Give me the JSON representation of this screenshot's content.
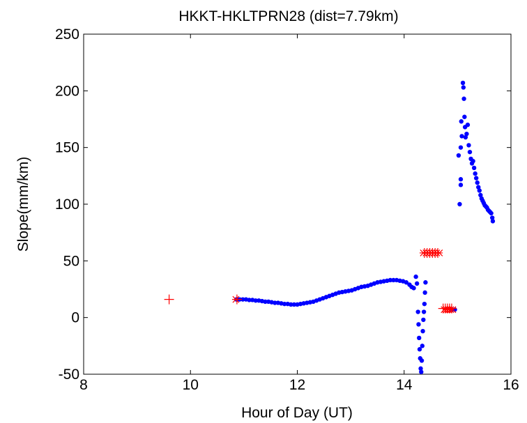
{
  "chart_data": {
    "type": "scatter",
    "title": "HKKT-HKLTPRN28 (dist=7.79km)",
    "xlabel": "Hour of Day (UT)",
    "ylabel": "Slope(mm/km)",
    "xlim": [
      8,
      16
    ],
    "ylim": [
      -50,
      250
    ],
    "xticks": [
      "8",
      "10",
      "12",
      "14",
      "16"
    ],
    "yticks": [
      "-50",
      "0",
      "50",
      "100",
      "150",
      "200",
      "250"
    ],
    "grid": false,
    "series": [
      {
        "marker": "dot",
        "color": "#0000ff",
        "points": [
          [
            10.86,
            16
          ],
          [
            10.92,
            16
          ],
          [
            10.98,
            16
          ],
          [
            11.04,
            16
          ],
          [
            11.1,
            15.5
          ],
          [
            11.16,
            15.5
          ],
          [
            11.22,
            15
          ],
          [
            11.28,
            15
          ],
          [
            11.34,
            14.5
          ],
          [
            11.4,
            14
          ],
          [
            11.46,
            14
          ],
          [
            11.52,
            13.5
          ],
          [
            11.58,
            13
          ],
          [
            11.64,
            13
          ],
          [
            11.7,
            12.5
          ],
          [
            11.76,
            12
          ],
          [
            11.82,
            12
          ],
          [
            11.88,
            11.5
          ],
          [
            11.94,
            11.5
          ],
          [
            12.0,
            11.5
          ],
          [
            12.06,
            12
          ],
          [
            12.12,
            12.5
          ],
          [
            12.18,
            13
          ],
          [
            12.24,
            13.5
          ],
          [
            12.3,
            14
          ],
          [
            12.36,
            15
          ],
          [
            12.42,
            16
          ],
          [
            12.48,
            17
          ],
          [
            12.54,
            18
          ],
          [
            12.6,
            19
          ],
          [
            12.66,
            20
          ],
          [
            12.72,
            21
          ],
          [
            12.78,
            22
          ],
          [
            12.84,
            22.5
          ],
          [
            12.9,
            23
          ],
          [
            12.96,
            23.5
          ],
          [
            13.02,
            24
          ],
          [
            13.08,
            25
          ],
          [
            13.14,
            26
          ],
          [
            13.2,
            27
          ],
          [
            13.26,
            27.5
          ],
          [
            13.32,
            28
          ],
          [
            13.38,
            29
          ],
          [
            13.44,
            30
          ],
          [
            13.5,
            31
          ],
          [
            13.56,
            31.5
          ],
          [
            13.62,
            32
          ],
          [
            13.68,
            32.5
          ],
          [
            13.74,
            33
          ],
          [
            13.8,
            33
          ],
          [
            13.86,
            33
          ],
          [
            13.92,
            32.5
          ],
          [
            13.98,
            32
          ],
          [
            14.04,
            31
          ],
          [
            14.1,
            29
          ],
          [
            14.14,
            27
          ],
          [
            14.18,
            26
          ],
          [
            14.22,
            36
          ],
          [
            14.24,
            30
          ],
          [
            14.26,
            5
          ],
          [
            14.27,
            -6
          ],
          [
            14.28,
            -18
          ],
          [
            14.29,
            -28
          ],
          [
            14.3,
            -36
          ],
          [
            14.31,
            -45
          ],
          [
            14.32,
            -48
          ],
          [
            14.33,
            -38
          ],
          [
            14.34,
            -25
          ],
          [
            14.35,
            -12
          ],
          [
            14.36,
            -2
          ],
          [
            14.37,
            5
          ],
          [
            14.38,
            12
          ],
          [
            14.39,
            22
          ],
          [
            14.4,
            31
          ],
          [
            14.9,
            7
          ],
          [
            14.95,
            7
          ],
          [
            15.04,
            100
          ],
          [
            15.06,
            122
          ],
          [
            15.06,
            117
          ],
          [
            15.02,
            143
          ],
          [
            15.06,
            150
          ],
          [
            15.07,
            173
          ],
          [
            15.08,
            160
          ],
          [
            15.1,
            207
          ],
          [
            15.11,
            203
          ],
          [
            15.12,
            193
          ],
          [
            15.13,
            177
          ],
          [
            15.14,
            168
          ],
          [
            15.15,
            159
          ],
          [
            15.17,
            162
          ],
          [
            15.19,
            170
          ],
          [
            15.21,
            152
          ],
          [
            15.23,
            146
          ],
          [
            15.25,
            140
          ],
          [
            15.27,
            136
          ],
          [
            15.29,
            138
          ],
          [
            15.31,
            132
          ],
          [
            15.33,
            127
          ],
          [
            15.35,
            123
          ],
          [
            15.37,
            119
          ],
          [
            15.39,
            115
          ],
          [
            15.41,
            112
          ],
          [
            15.43,
            108
          ],
          [
            15.45,
            105
          ],
          [
            15.47,
            103
          ],
          [
            15.49,
            101
          ],
          [
            15.51,
            99
          ],
          [
            15.53,
            98
          ],
          [
            15.55,
            97
          ],
          [
            15.57,
            95
          ],
          [
            15.59,
            94
          ],
          [
            15.61,
            93
          ],
          [
            15.63,
            92
          ],
          [
            15.65,
            88
          ],
          [
            15.66,
            85
          ]
        ]
      },
      {
        "marker": "plus",
        "color": "#ff0000",
        "points": [
          [
            9.6,
            16
          ],
          [
            10.87,
            16
          ],
          [
            14.38,
            57
          ],
          [
            14.43,
            57
          ],
          [
            14.48,
            57
          ],
          [
            14.53,
            57
          ],
          [
            14.58,
            57
          ],
          [
            14.63,
            57
          ],
          [
            14.73,
            8
          ],
          [
            14.77,
            8
          ],
          [
            14.81,
            8
          ],
          [
            14.85,
            8
          ],
          [
            14.89,
            8
          ]
        ]
      },
      {
        "marker": "cross",
        "color": "#ff0000",
        "points": [
          [
            10.85,
            16
          ],
          [
            14.36,
            57
          ],
          [
            14.41,
            57
          ],
          [
            14.46,
            57
          ],
          [
            14.51,
            57
          ],
          [
            14.56,
            57
          ],
          [
            14.61,
            57
          ],
          [
            14.66,
            57
          ],
          [
            14.75,
            7
          ],
          [
            14.79,
            7
          ],
          [
            14.83,
            7
          ],
          [
            14.87,
            7
          ],
          [
            14.91,
            7
          ]
        ]
      }
    ]
  }
}
